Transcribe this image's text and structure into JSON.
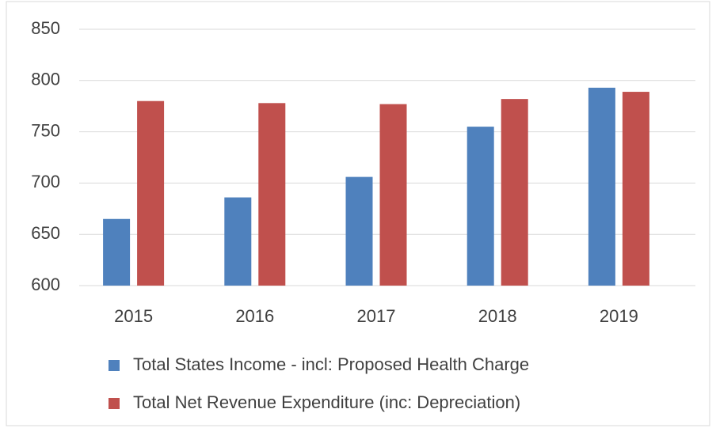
{
  "chart_data": {
    "type": "bar",
    "categories": [
      "2015",
      "2016",
      "2017",
      "2018",
      "2019"
    ],
    "series": [
      {
        "name": "Total States Income - incl: Proposed Health Charge",
        "color": "#4f81bd",
        "values": [
          665,
          686,
          706,
          755,
          793
        ]
      },
      {
        "name": "Total Net Revenue Expenditure (inc: Depreciation)",
        "color": "#c0504d",
        "values": [
          780,
          778,
          777,
          782,
          789
        ]
      }
    ],
    "ylim": [
      600,
      850
    ],
    "yticks": [
      600,
      650,
      700,
      750,
      800,
      850
    ],
    "grid": true,
    "legend": "bottom"
  }
}
